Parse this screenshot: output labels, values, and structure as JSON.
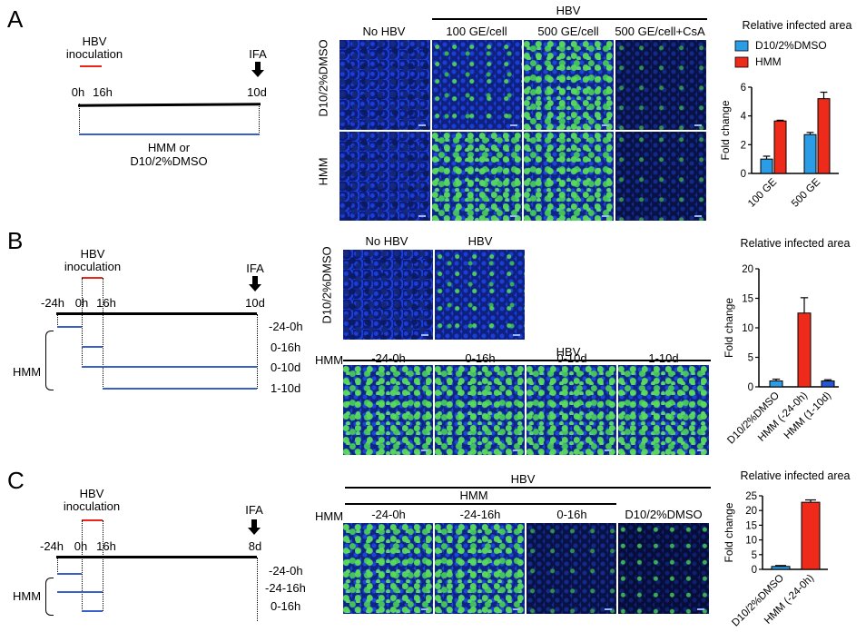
{
  "panels": {
    "A": {
      "label": "A",
      "timeline": {
        "hbv": "HBV",
        "inoculation": "inoculation",
        "t0": "0h",
        "t16": "16h",
        "ifa": "IFA",
        "tend": "10d",
        "treat_line1": "HMM or",
        "treat_line2": "D10/2%DMSO"
      },
      "grid": {
        "hbv_header": "HBV",
        "columns": [
          "No HBV",
          "100 GE/cell",
          "500 GE/cell",
          "500 GE/cell+CsA"
        ],
        "rows": [
          "D10/2%DMSO",
          "HMM"
        ]
      }
    },
    "B": {
      "label": "B",
      "timeline": {
        "hbv": "HBV",
        "inoculation": "inoculation",
        "tm24": "-24h",
        "t0": "0h",
        "t16": "16h",
        "ifa": "IFA",
        "tend": "10d",
        "hmm": "HMM",
        "treatments": [
          "-24-0h",
          "0-16h",
          "0-10d",
          "1-10d"
        ]
      },
      "grid": {
        "top_columns": [
          "No HBV",
          "HBV"
        ],
        "top_row": "D10/2%DMSO",
        "hbv_header": "HBV",
        "row_label": "HMM",
        "columns": [
          "-24-0h",
          "0-16h",
          "0-10d",
          "1-10d"
        ]
      }
    },
    "C": {
      "label": "C",
      "timeline": {
        "hbv": "HBV",
        "inoculation": "inoculation",
        "tm24": "-24h",
        "t0": "0h",
        "t16": "16h",
        "ifa": "IFA",
        "tend": "8d",
        "hmm": "HMM",
        "treatments": [
          "-24-0h",
          "-24-16h",
          "0-16h"
        ]
      },
      "grid": {
        "hbv_header": "HBV",
        "hmm_header": "HMM",
        "row_label": "HMM",
        "columns": [
          "-24-0h",
          "-24-16h",
          "0-16h",
          "D10/2%DMSO"
        ]
      }
    }
  },
  "colors": {
    "dmso": "#2b9ce6",
    "hmm": "#ee2a1a",
    "hmm_b3": "#2457d6",
    "inoculation": "#e8261c",
    "treatment": "#3a5fc8"
  },
  "chart_data": [
    {
      "type": "bar",
      "title": "Relative infected area",
      "ylabel": "Fold change",
      "categories": [
        "100 GE",
        "500 GE"
      ],
      "series": [
        {
          "name": "D10/2%DMSO",
          "values": [
            1.0,
            2.7
          ],
          "errors": [
            0.2,
            0.15
          ]
        },
        {
          "name": "HMM",
          "values": [
            3.65,
            5.2
          ],
          "errors": [
            0.05,
            0.45
          ]
        }
      ],
      "ylim": [
        0,
        6
      ],
      "yticks": [
        0,
        2,
        4,
        6
      ],
      "legend": "top"
    },
    {
      "type": "bar",
      "title": "Relative infected area",
      "ylabel": "Fold change",
      "categories": [
        "D10/2%DMSO",
        "HMM (-24-0h)",
        "HMM (1-10d)"
      ],
      "values": [
        1.0,
        12.5,
        1.0
      ],
      "errors": [
        0.3,
        2.6,
        0.2
      ],
      "ylim": [
        0,
        20
      ],
      "yticks": [
        0,
        5,
        10,
        15,
        20
      ]
    },
    {
      "type": "bar",
      "title": "Relative infected area",
      "ylabel": "Fold change",
      "categories": [
        "D10/2%DMSO",
        "HMM (-24-0h)"
      ],
      "values": [
        1.0,
        22.8
      ],
      "errors": [
        0.3,
        0.8
      ],
      "ylim": [
        0,
        25
      ],
      "yticks": [
        0,
        5,
        10,
        15,
        20,
        25
      ]
    }
  ]
}
